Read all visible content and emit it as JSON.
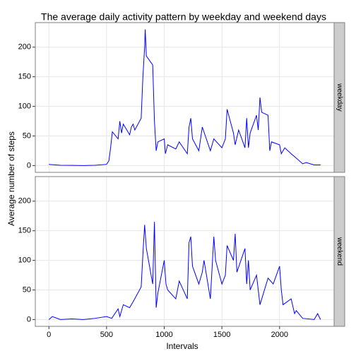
{
  "chart_data": {
    "type": "line",
    "title": "The average daily activity pattern by weekday and weekend days",
    "x_label": "Intervals",
    "y_label": "Average number of steps",
    "xlim": [
      -117.75,
      2472.75
    ],
    "xticks": [
      0,
      500,
      1000,
      1500,
      2000
    ],
    "ylim": [
      -11.5,
      241.5
    ],
    "yticks": [
      0,
      50,
      100,
      150,
      200
    ],
    "grid": true,
    "color": "#0000ff",
    "series": [
      {
        "name": "weekday",
        "color": "#0000ff",
        "x": [
          0,
          100,
          200,
          300,
          400,
          500,
          520,
          535,
          550,
          600,
          615,
          630,
          645,
          700,
          715,
          730,
          745,
          800,
          815,
          830,
          835,
          845,
          900,
          915,
          930,
          945,
          1000,
          1010,
          1030,
          1100,
          1130,
          1200,
          1215,
          1230,
          1245,
          1300,
          1330,
          1400,
          1430,
          1500,
          1530,
          1545,
          1600,
          1615,
          1645,
          1700,
          1715,
          1730,
          1745,
          1800,
          1815,
          1830,
          1845,
          1900,
          1915,
          1930,
          2000,
          2015,
          2045,
          2100,
          2130,
          2200,
          2230,
          2300,
          2355
        ],
        "values": [
          2,
          0.5,
          0.3,
          0,
          0.5,
          2,
          8,
          30,
          57,
          45,
          75,
          55,
          70,
          52,
          65,
          70,
          60,
          80,
          150,
          200,
          230,
          185,
          170,
          75,
          25,
          40,
          45,
          20,
          35,
          28,
          40,
          20,
          65,
          80,
          45,
          25,
          65,
          25,
          45,
          30,
          45,
          95,
          55,
          35,
          60,
          30,
          80,
          30,
          55,
          85,
          60,
          115,
          90,
          85,
          25,
          40,
          35,
          20,
          30,
          20,
          15,
          3,
          5,
          1,
          1
        ]
      },
      {
        "name": "weekend",
        "color": "#0000ff",
        "x": [
          0,
          30,
          100,
          200,
          300,
          400,
          500,
          545,
          600,
          615,
          645,
          700,
          730,
          800,
          815,
          830,
          845,
          900,
          915,
          930,
          945,
          1000,
          1015,
          1030,
          1100,
          1130,
          1200,
          1215,
          1230,
          1245,
          1300,
          1330,
          1345,
          1400,
          1430,
          1445,
          1500,
          1530,
          1545,
          1600,
          1615,
          1630,
          1700,
          1715,
          1730,
          1745,
          1800,
          1830,
          1900,
          1945,
          2000,
          2015,
          2030,
          2100,
          2130,
          2145,
          2200,
          2300,
          2330,
          2355
        ],
        "values": [
          0,
          5,
          0,
          1,
          0,
          2,
          5,
          2,
          18,
          5,
          25,
          20,
          30,
          55,
          110,
          160,
          120,
          60,
          165,
          20,
          45,
          100,
          60,
          50,
          35,
          65,
          35,
          130,
          140,
          90,
          60,
          80,
          100,
          35,
          140,
          100,
          60,
          75,
          125,
          100,
          145,
          80,
          120,
          60,
          100,
          50,
          75,
          25,
          70,
          60,
          90,
          50,
          25,
          35,
          10,
          15,
          2,
          0,
          10,
          0
        ]
      }
    ]
  }
}
